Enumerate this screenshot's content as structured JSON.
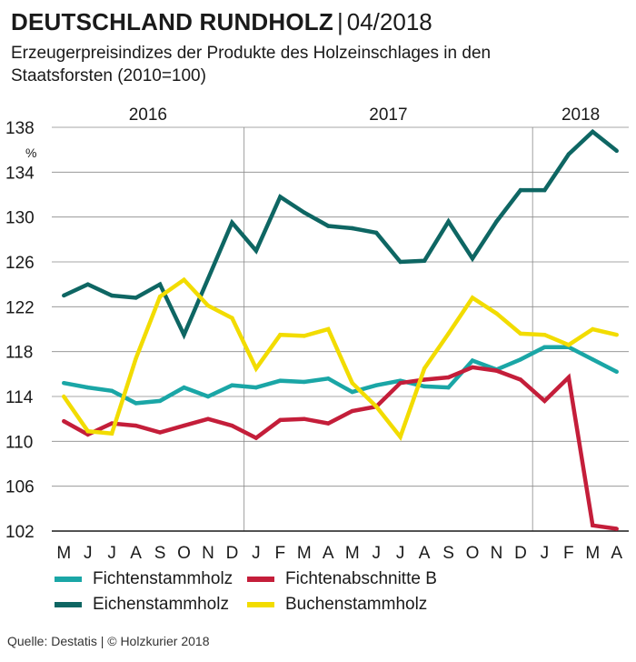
{
  "header": {
    "title": "DEUTSCHLAND RUNDHOLZ",
    "separator": "|",
    "date": "04/2018",
    "subtitle": "Erzeugerpreisindizes der Produkte des Holzeinschlages in den Staatsforsten (2010=100)"
  },
  "footer": {
    "source": "Quelle: Destatis | © Holzkurier 2018"
  },
  "chart_data": {
    "type": "line",
    "title": "Erzeugerpreisindizes der Produkte des Holzeinschlages in den Staatsforsten (2010=100)",
    "ylabel": "%",
    "xlabel": "",
    "ylim": [
      102,
      138
    ],
    "yticks": [
      102,
      106,
      110,
      114,
      118,
      122,
      126,
      130,
      134,
      138
    ],
    "grid": true,
    "legend_position": "bottom",
    "categories": [
      "M",
      "J",
      "J",
      "A",
      "S",
      "O",
      "N",
      "D",
      "J",
      "F",
      "M",
      "A",
      "M",
      "J",
      "J",
      "A",
      "S",
      "O",
      "N",
      "D",
      "J",
      "F",
      "M",
      "A"
    ],
    "years": [
      {
        "label": "2016",
        "from": 0,
        "to": 7
      },
      {
        "label": "2017",
        "from": 8,
        "to": 19
      },
      {
        "label": "2018",
        "from": 20,
        "to": 23
      }
    ],
    "series": [
      {
        "name": "Fichtenstammholz",
        "color": "#1aa6a6",
        "values": [
          115.2,
          114.8,
          114.5,
          113.4,
          113.6,
          114.8,
          114.0,
          115.0,
          114.8,
          115.4,
          115.3,
          115.6,
          114.4,
          115.0,
          115.4,
          114.9,
          114.8,
          117.2,
          116.4,
          117.3,
          118.4,
          118.4,
          117.3,
          116.2
        ]
      },
      {
        "name": "Fichtenabschnitte B",
        "color": "#c41e3a",
        "values": [
          111.8,
          110.6,
          111.6,
          111.4,
          110.8,
          111.4,
          112.0,
          111.4,
          110.3,
          111.9,
          112.0,
          111.6,
          112.7,
          113.1,
          115.2,
          115.5,
          115.7,
          116.6,
          116.3,
          115.5,
          113.6,
          115.7,
          102.5,
          102.2
        ]
      },
      {
        "name": "Eichenstammholz",
        "color": "#0e6663",
        "values": [
          123.0,
          124.0,
          123.0,
          122.8,
          124.0,
          119.5,
          124.5,
          129.5,
          127.0,
          131.8,
          130.4,
          129.2,
          129.0,
          128.6,
          126.0,
          126.1,
          129.6,
          126.3,
          129.6,
          132.4,
          132.4,
          135.6,
          137.6,
          135.9
        ]
      },
      {
        "name": "Buchenstammholz",
        "color": "#f2dc00",
        "values": [
          114.0,
          110.9,
          110.7,
          117.4,
          122.9,
          124.4,
          122.1,
          121.0,
          116.5,
          119.5,
          119.4,
          120.0,
          115.2,
          113.1,
          110.4,
          116.5,
          119.6,
          122.8,
          121.4,
          119.6,
          119.5,
          118.6,
          120.0,
          119.5
        ]
      }
    ]
  }
}
